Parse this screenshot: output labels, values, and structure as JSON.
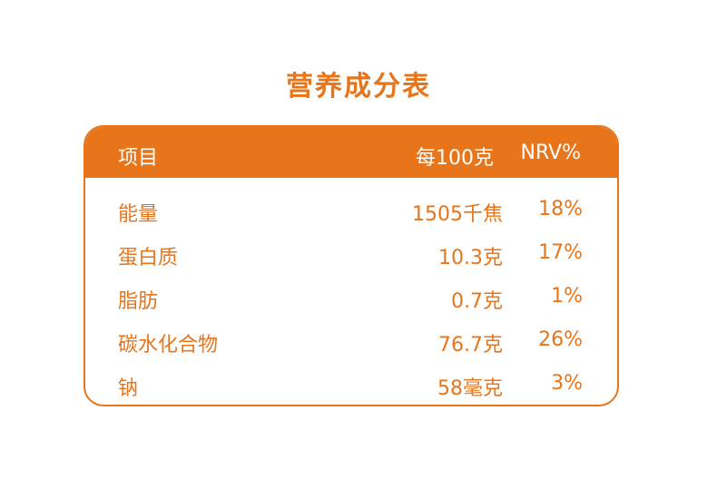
{
  "title": "营养成分表",
  "colors": {
    "accent": "#e8751a",
    "header_text": "#ffffff"
  },
  "table": {
    "headers": {
      "item": "项目",
      "per100": "每100克",
      "nrv": "NRV%"
    },
    "rows": [
      {
        "item": "能量",
        "per100": "1505千焦",
        "nrv": "18%"
      },
      {
        "item": "蛋白质",
        "per100": "10.3克",
        "nrv": "17%"
      },
      {
        "item": "脂肪",
        "per100": "0.7克",
        "nrv": "1%"
      },
      {
        "item": "碳水化合物",
        "per100": "76.7克",
        "nrv": "26%"
      },
      {
        "item": "钠",
        "per100": "58毫克",
        "nrv": "3%"
      }
    ]
  }
}
